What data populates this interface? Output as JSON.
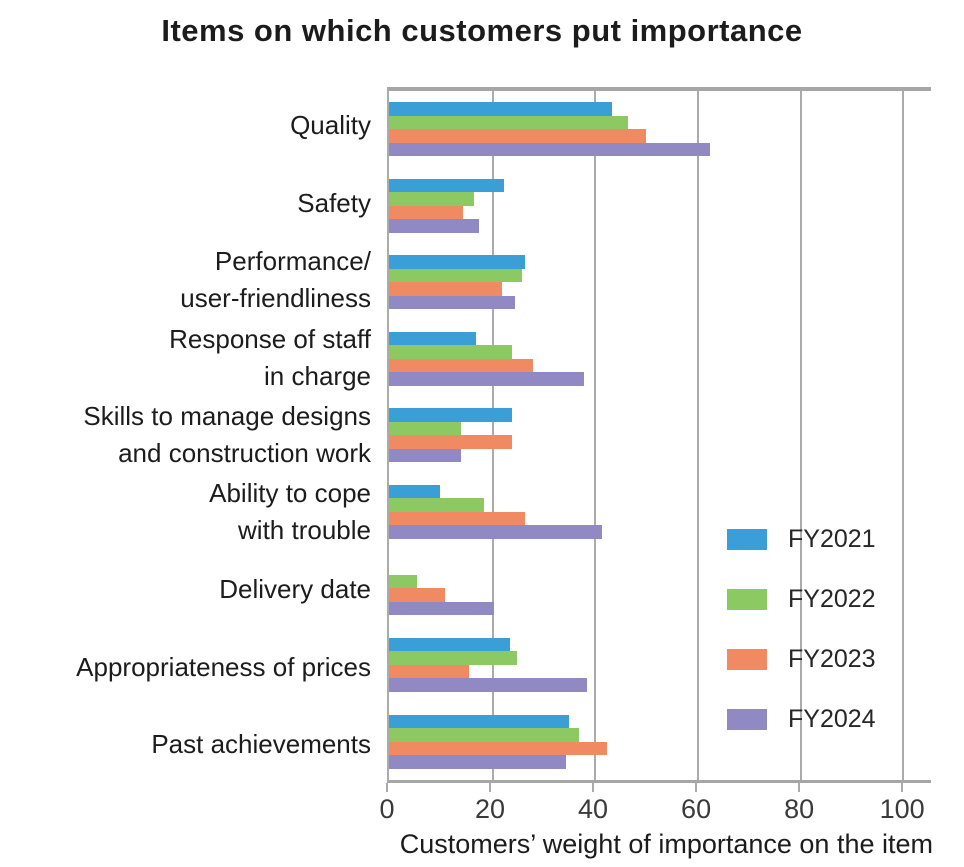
{
  "chart_data": {
    "type": "bar",
    "orientation": "horizontal",
    "title": "Items on which customers put importance",
    "xlabel": "Customers’ weight of importance on the item",
    "x_axis": {
      "min": 0,
      "max": 100,
      "ticks": [
        0,
        20,
        40,
        60,
        80,
        100
      ],
      "plot_max": 105.6,
      "grid": true
    },
    "categories": [
      "Quality",
      "Safety",
      "Performance/\nuser-friendliness",
      "Response of staff\nin charge",
      "Skills to manage designs\nand construction work",
      "Ability to cope\nwith trouble",
      "Delivery date",
      "Appropriateness of prices",
      "Past achievements"
    ],
    "series": [
      {
        "name": "FY2021",
        "color": "#3a9fd6",
        "values": [
          43.5,
          22.5,
          26.5,
          17,
          24,
          10,
          0,
          23.5,
          35
        ]
      },
      {
        "name": "FY2022",
        "color": "#8dc963",
        "values": [
          46.5,
          16.5,
          26,
          24,
          14,
          18.5,
          5.5,
          25,
          37
        ]
      },
      {
        "name": "FY2023",
        "color": "#f08a62",
        "values": [
          50,
          14.5,
          22,
          28,
          24,
          26.5,
          11,
          15.5,
          42.5
        ]
      },
      {
        "name": "FY2024",
        "color": "#9189c4",
        "values": [
          62.5,
          17.5,
          24.5,
          38,
          14,
          41.5,
          20.5,
          38.5,
          34.5
        ]
      }
    ],
    "legend": {
      "position": "inside-right",
      "entries": [
        "FY2021",
        "FY2022",
        "FY2023",
        "FY2024"
      ]
    }
  },
  "colors": {
    "gridline": "#ababab",
    "axis": "#a6a6a6",
    "title_text": "#1c1c1c",
    "tick_text": "#3a3a3a",
    "background": "#ffffff"
  }
}
